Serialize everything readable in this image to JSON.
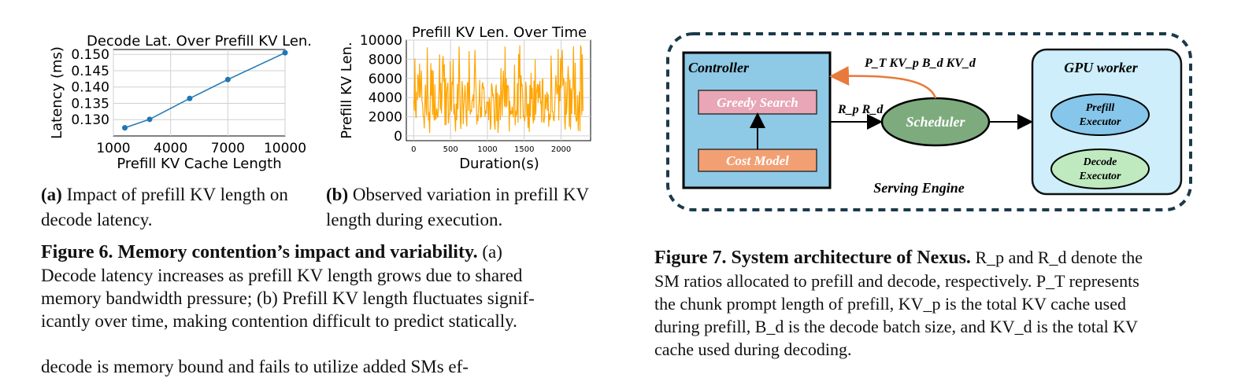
{
  "chart_data": [
    {
      "type": "line",
      "title": "Decode Lat. Over Prefill KV Len.",
      "xlabel": "Prefill KV Cache Length",
      "ylabel": "Latency (ms)",
      "x": [
        1600,
        2900,
        5000,
        7000,
        10000
      ],
      "values": [
        0.1275,
        0.1301,
        0.1365,
        0.1423,
        0.1505
      ],
      "xlim": [
        1000,
        10000
      ],
      "ylim": [
        0.125,
        0.1515
      ],
      "xticks": [
        "1000",
        "4000",
        "7000",
        "10000"
      ],
      "yticks": [
        "0.130",
        "0.135",
        "0.140",
        "0.145",
        "0.150"
      ],
      "grid": true,
      "color": "#1f77b4"
    },
    {
      "type": "line",
      "title": "Prefill KV Len. Over Time",
      "xlabel": "Duration(s)",
      "ylabel": "Prefill KV Len.",
      "xlim": [
        -100,
        2400
      ],
      "ylim": [
        -500,
        10000
      ],
      "xticks": [
        "0",
        "500",
        "1000",
        "1500",
        "2000"
      ],
      "yticks": [
        "0",
        "2000",
        "4000",
        "6000",
        "8000",
        "10000"
      ],
      "grid": true,
      "color": "#ffa500",
      "series_note": "fluctuating series between ~0 and ~9500"
    }
  ],
  "captions": {
    "sub_a_label": "(a)",
    "sub_a_text": " Impact of prefill KV length on decode latency.",
    "sub_b_label": "(b)",
    "sub_b_text": " Observed variation in prefill KV length during execution.",
    "fig6_lead": "Figure 6. Memory contention’s impact and variability.",
    "fig6_line1": " (a)",
    "fig6_line2": "Decode latency increases as prefill KV length grows due to shared",
    "fig6_line3": "memory bandwidth pressure; (b) Prefill KV length fluctuates signif-",
    "fig6_line4": "icantly over time, making contention difficult to predict statically.",
    "body_line": "decode is memory bound and fails to utilize added SMs ef-",
    "fig7_lead": "Figure 7. System architecture of Nexus.",
    "fig7_line1_rest": " R_p and R_d denote the",
    "fig7_line2": "SM ratios allocated to prefill and decode, respectively. P_T represents",
    "fig7_line3": "the chunk prompt length of prefill, KV_p is the total KV cache used",
    "fig7_line4": "during prefill, B_d is the decode batch size, and KV_d is the total KV",
    "fig7_line5": "cache used during decoding."
  },
  "diagram": {
    "controller": "Controller",
    "greedy": "Greedy Search",
    "cost": "Cost Model",
    "scheduler": "Scheduler",
    "gpu": "GPU worker",
    "prefill_exec_1": "Prefill",
    "prefill_exec_2": "Executor",
    "decode_exec_1": "Decode",
    "decode_exec_2": "Executor",
    "serving": "Serving Engine",
    "top_label": "P_T  KV_p  B_d  KV_d",
    "mid_label": "R_p  R_d"
  }
}
